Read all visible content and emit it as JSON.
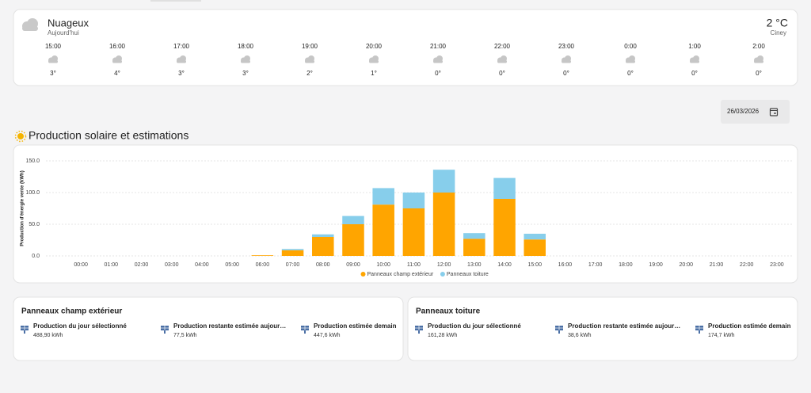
{
  "weather": {
    "condition": "Nuageux",
    "day": "Aujourd'hui",
    "temperature": "2 °C",
    "location": "Ciney",
    "hourly": [
      {
        "time": "15:00",
        "temp": "3°"
      },
      {
        "time": "16:00",
        "temp": "4°"
      },
      {
        "time": "17:00",
        "temp": "3°"
      },
      {
        "time": "18:00",
        "temp": "3°"
      },
      {
        "time": "19:00",
        "temp": "2°"
      },
      {
        "time": "20:00",
        "temp": "1°"
      },
      {
        "time": "21:00",
        "temp": "0°"
      },
      {
        "time": "22:00",
        "temp": "0°"
      },
      {
        "time": "23:00",
        "temp": "0°"
      },
      {
        "time": "0:00",
        "temp": "0°"
      },
      {
        "time": "1:00",
        "temp": "0°"
      },
      {
        "time": "2:00",
        "temp": "0°"
      }
    ]
  },
  "date": "26/03/2026",
  "section_title": "Production solaire et estimations",
  "chart_data": {
    "type": "stacked-bar",
    "ylabel": "Production d'énergie vente (kWh)",
    "categories": [
      "00:00",
      "01:00",
      "02:00",
      "03:00",
      "04:00",
      "05:00",
      "06:00",
      "07:00",
      "08:00",
      "09:00",
      "10:00",
      "11:00",
      "12:00",
      "13:00",
      "14:00",
      "15:00",
      "16:00",
      "17:00",
      "18:00",
      "19:00",
      "20:00",
      "21:00",
      "22:00",
      "23:00"
    ],
    "series": [
      {
        "name": "Panneaux champ extérieur",
        "color": "#ffa500",
        "values": [
          0,
          0,
          0,
          0,
          0,
          0,
          1,
          9,
          30,
          50,
          81,
          75,
          100,
          27,
          90,
          26,
          0,
          0,
          0,
          0,
          0,
          0,
          0,
          0
        ]
      },
      {
        "name": "Panneaux toiture",
        "color": "#87ceeb",
        "values": [
          0,
          0,
          0,
          0,
          0,
          0,
          0,
          2,
          4,
          13,
          26,
          25,
          36,
          9,
          33,
          9,
          0,
          0,
          0,
          0,
          0,
          0,
          0,
          0
        ]
      }
    ],
    "ylim": [
      0,
      150
    ],
    "yticks": [
      {
        "value": 0,
        "label": "0.0"
      },
      {
        "value": 50,
        "label": "50.0"
      },
      {
        "value": 100,
        "label": "100.0"
      },
      {
        "value": 150,
        "label": "150.0"
      }
    ],
    "grid": true,
    "legend": "bottom"
  },
  "panels": [
    {
      "title": "Panneaux champ extérieur",
      "items": [
        {
          "label": "Production du jour sélectionné",
          "value": "488,90 kWh"
        },
        {
          "label": "Production restante estimée aujour…",
          "value": "77,5 kWh"
        },
        {
          "label": "Production estimée demain",
          "value": "447,6 kWh"
        }
      ]
    },
    {
      "title": "Panneaux toiture",
      "items": [
        {
          "label": "Production du jour sélectionné",
          "value": "161,28 kWh"
        },
        {
          "label": "Production restante estimée aujour…",
          "value": "38,6 kWh"
        },
        {
          "label": "Production estimée demain",
          "value": "174,7 kWh"
        }
      ]
    }
  ]
}
